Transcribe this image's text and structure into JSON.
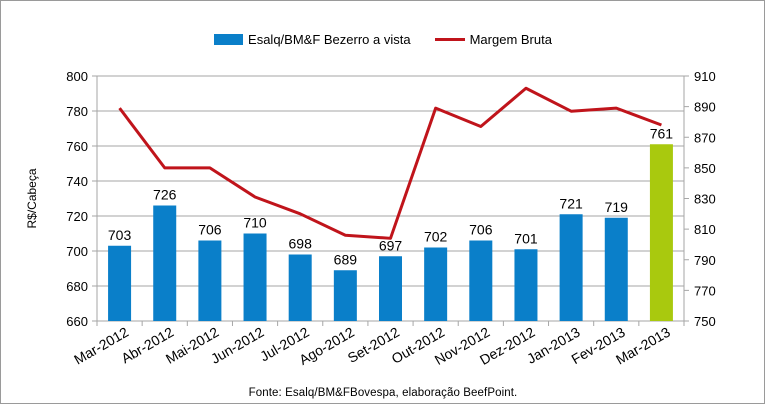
{
  "legend": {
    "bar_series": "Esalq/BM&F Bezerro a vista",
    "line_series": "Margem Bruta"
  },
  "source": "Fonte: Esalq/BM&FBovespa, elaboração BeefPoint.",
  "colors": {
    "bar": "#0a7fc9",
    "bar_highlight": "#a9c90e",
    "line": "#c0141b",
    "grid": "#a6a6a6"
  },
  "chart_data": {
    "type": "bar",
    "title": "",
    "categories": [
      "Mar-2012",
      "Abr-2012",
      "Mai-2012",
      "Jun-2012",
      "Jul-2012",
      "Ago-2012",
      "Set-2012",
      "Out-2012",
      "Nov-2012",
      "Dez-2012",
      "Jan-2013",
      "Fev-2013",
      "Mar-2013"
    ],
    "ylabel": "R$/Cabeça",
    "ylim": [
      660,
      800
    ],
    "yticks": [
      660,
      680,
      700,
      720,
      740,
      760,
      780,
      800
    ],
    "y2lim": [
      750,
      910
    ],
    "y2ticks": [
      750,
      770,
      790,
      810,
      830,
      850,
      870,
      890,
      910
    ],
    "grid": true,
    "legend_position": "top",
    "series": [
      {
        "name": "Esalq/BM&F Bezerro a vista",
        "type": "bar",
        "axis": "left",
        "values": [
          703,
          726,
          706,
          710,
          698,
          689,
          697,
          702,
          706,
          701,
          721,
          719,
          761
        ],
        "labels": [
          "703",
          "726",
          "706",
          "710",
          "698",
          "689",
          "697",
          "702",
          "706",
          "701",
          "721",
          "719",
          "761"
        ],
        "highlight_index": 12
      },
      {
        "name": "Margem Bruta",
        "type": "line",
        "axis": "right",
        "values": [
          889,
          850,
          850,
          831,
          820,
          806,
          804,
          889,
          877,
          902,
          887,
          889,
          878
        ]
      }
    ]
  }
}
